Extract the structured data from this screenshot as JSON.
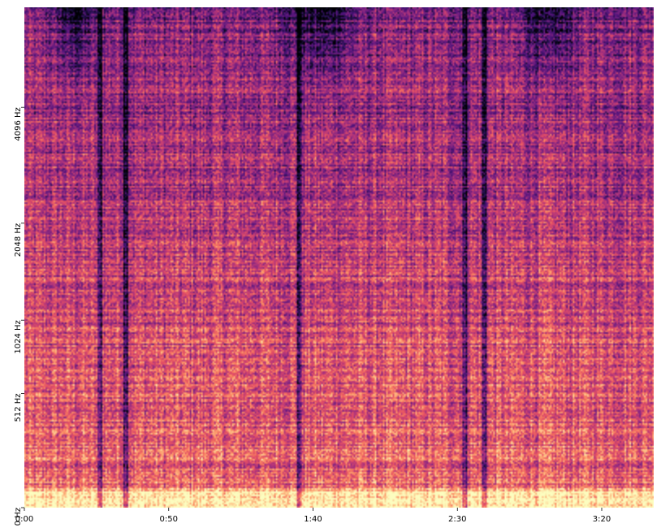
{
  "chart_data": {
    "type": "heatmap",
    "title": "",
    "xlabel": "",
    "ylabel": "",
    "colormap": "magma",
    "x_axis": {
      "unit": "seconds",
      "range": [
        0,
        218
      ],
      "ticks": [
        {
          "value": 0,
          "label": "0:00"
        },
        {
          "value": 50,
          "label": "0:50"
        },
        {
          "value": 100,
          "label": "1:40"
        },
        {
          "value": 150,
          "label": "2:30"
        },
        {
          "value": 200,
          "label": "3:20"
        }
      ]
    },
    "y_axis": {
      "unit": "Hz",
      "scale": "mel",
      "ticks": [
        {
          "value": 0,
          "label": "0 Hz"
        },
        {
          "value": 512,
          "label": "512 Hz"
        },
        {
          "value": 1024,
          "label": "1024 Hz"
        },
        {
          "value": 2048,
          "label": "2048 Hz"
        },
        {
          "value": 4096,
          "label": "4096 Hz"
        }
      ]
    },
    "dark_vertical_bands_seconds": [
      26,
      35,
      95,
      152,
      159
    ],
    "colors": {
      "low": "#1d1147",
      "mid": "#b73779",
      "high": "#fcfdbf"
    }
  }
}
